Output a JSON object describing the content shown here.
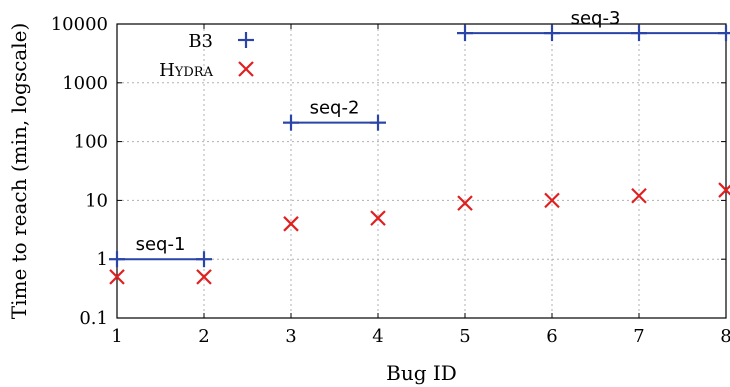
{
  "chart_data": {
    "type": "scatter",
    "xlabel": "Bug ID",
    "ylabel": "Time to reach (min, logscale)",
    "x_ticks": [
      1,
      2,
      3,
      4,
      5,
      6,
      7,
      8
    ],
    "y_ticks": [
      0.1,
      1,
      10,
      100,
      1000,
      10000
    ],
    "y_tick_labels": [
      "0.1",
      "1",
      "10",
      "100",
      "1000",
      "10000"
    ],
    "xlim": [
      1,
      8
    ],
    "ylim": [
      0.1,
      10000
    ],
    "y_scale": "log",
    "grid": true,
    "legend_position": "top-left",
    "series": [
      {
        "name": "B3",
        "marker": "plus",
        "color": "#2a44a8",
        "points": [
          [
            1,
            1
          ],
          [
            2,
            1
          ],
          [
            3,
            210
          ],
          [
            4,
            210
          ],
          [
            5,
            7000
          ],
          [
            6,
            7000
          ],
          [
            7,
            7000
          ],
          [
            8,
            7000
          ]
        ]
      },
      {
        "name": "Hydra",
        "marker": "x",
        "color": "#e02020",
        "points": [
          [
            1,
            0.5
          ],
          [
            2,
            0.5
          ],
          [
            3,
            4
          ],
          [
            4,
            5
          ],
          [
            5,
            9
          ],
          [
            6,
            10
          ],
          [
            7,
            12
          ],
          [
            8,
            15
          ]
        ]
      }
    ],
    "groups": [
      {
        "label": "seq-1",
        "x_from": 1,
        "x_to": 2,
        "y": 1
      },
      {
        "label": "seq-2",
        "x_from": 3,
        "x_to": 4,
        "y": 210
      },
      {
        "label": "seq-3",
        "x_from": 5,
        "x_to": 8,
        "y": 7000
      }
    ]
  }
}
